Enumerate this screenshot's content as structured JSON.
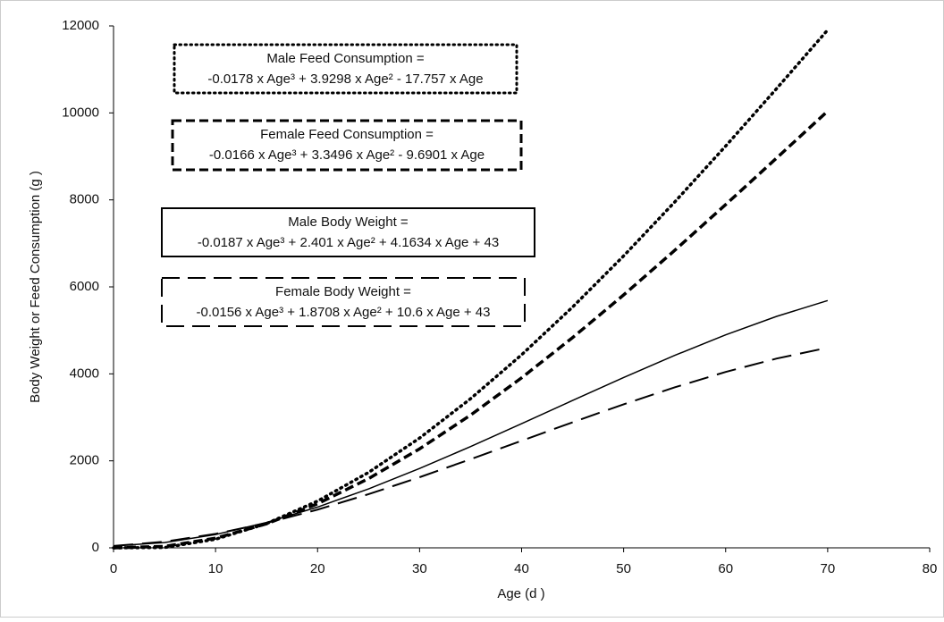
{
  "chart_data": {
    "type": "line",
    "xlabel": "Age (d )",
    "ylabel": "Body Weight or Feed Consumption (g )",
    "x": [
      0,
      5,
      10,
      15,
      20,
      25,
      30,
      35,
      40,
      45,
      50,
      55,
      60,
      65,
      70
    ],
    "xlim": [
      0,
      80
    ],
    "xticks": [
      0,
      10,
      20,
      30,
      40,
      50,
      60,
      70,
      80
    ],
    "ylim": [
      0,
      12000
    ],
    "yticks": [
      0,
      2000,
      4000,
      6000,
      8000,
      10000,
      12000
    ],
    "grid": false,
    "series": [
      {
        "label": [
          "Male Feed Consumption =",
          "-0.0178 x Age³ + 3.9298 x Age² - 17.757 x Age"
        ],
        "color": "#000000",
        "style": "dotted",
        "values": [
          0,
          7.2,
          197.6,
          557.8,
          1074.4,
          1734.1,
          2523.5,
          3429.3,
          4438.2,
          5536.7,
          6711.6,
          7949.6,
          9237.1,
          10560.8,
          11907.6
        ]
      },
      {
        "label": [
          "Female Feed Consumption =",
          "-0.0166 x Age³ + 3.3496 x Age² - 9.6901 x Age"
        ],
        "color": "#000000",
        "style": "dashed",
        "values": [
          0,
          33.2,
          221.5,
          552.3,
          1013.2,
          1591.8,
          2275.7,
          3052.4,
          3909.4,
          4834.1,
          5814.5,
          6837.7,
          7891.6,
          8963.4,
          10040.9
        ]
      },
      {
        "label": [
          "Male Body Weight =",
          "-0.0187 x Age³ + 2.401 x Age² + 4.1634 x Age + 43"
        ],
        "color": "#000000",
        "style": "solid",
        "values": [
          43,
          121.5,
          306,
          582.6,
          937.1,
          1355.5,
          1823.9,
          2328.1,
          2854.3,
          3388.4,
          3916.2,
          4423.7,
          4897.2,
          5322.2,
          5685.2
        ]
      },
      {
        "label": [
          "Female Body Weight  =",
          "-0.0156 x Age³ + 1.8708 x Age² + 10.6 x Age + 43"
        ],
        "color": "#000000",
        "style": "longdash",
        "values": [
          43,
          140.8,
          320.5,
          570.3,
          878.5,
          1233.5,
          1623.5,
          2036.9,
          2461.9,
          2886.9,
          3300,
          3689.7,
          4044.3,
          4351.9,
          4601.1
        ]
      }
    ]
  }
}
